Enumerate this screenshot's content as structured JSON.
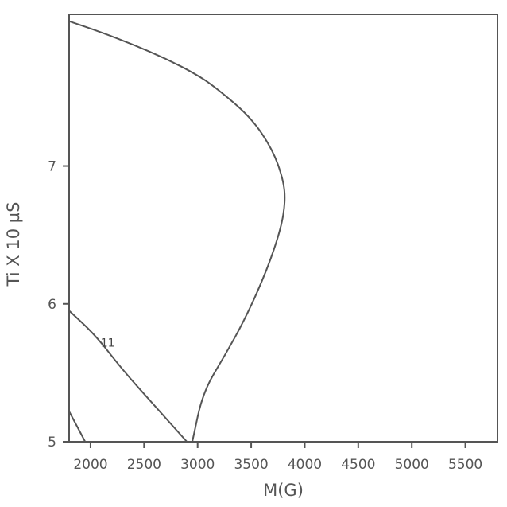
{
  "chart_data": {
    "type": "line",
    "subtype": "contour",
    "title": "",
    "xlabel": "M(G)",
    "ylabel": "Ti X 10 µS",
    "xlim": [
      1800,
      5800
    ],
    "ylim": [
      5,
      8.1
    ],
    "x_ticks": [
      2000,
      2500,
      3000,
      3500,
      4000,
      4500,
      5000,
      5500
    ],
    "y_ticks": [
      5,
      6,
      7
    ],
    "grid": false,
    "legend": "none",
    "line_color": "#555555",
    "series": [
      {
        "label": "",
        "points": [
          [
            1800,
            5.22
          ],
          [
            1950,
            5.0
          ]
        ]
      },
      {
        "label": "11",
        "points": [
          [
            1800,
            5.95
          ],
          [
            2050,
            5.77
          ],
          [
            2300,
            5.52
          ],
          [
            2600,
            5.26
          ],
          [
            2900,
            5.0
          ]
        ]
      },
      {
        "label": "",
        "points": [
          [
            1800,
            8.0
          ],
          [
            2000,
            7.95
          ],
          [
            2300,
            7.85
          ],
          [
            2600,
            7.75
          ],
          [
            3000,
            7.55
          ],
          [
            3400,
            7.35
          ],
          [
            3700,
            7.05
          ],
          [
            3800,
            6.9
          ],
          [
            3750,
            6.6
          ],
          [
            3500,
            6.1
          ],
          [
            3300,
            5.7
          ],
          [
            3100,
            5.45
          ],
          [
            2900,
            5.0
          ]
        ]
      }
    ],
    "contour_lines": [
      {
        "label": "",
        "points": [
          [
            1800,
            5.22
          ],
          [
            1950,
            5.0
          ]
        ]
      },
      {
        "label": "11",
        "points": [
          [
            1800,
            5.95
          ],
          [
            2050,
            5.77
          ],
          [
            2300,
            5.52
          ],
          [
            2600,
            5.26
          ],
          [
            2900,
            5.0
          ]
        ]
      },
      {
        "label": "",
        "points": [
          [
            1800,
            8.05
          ],
          [
            2100,
            7.97
          ],
          [
            2400,
            7.88
          ],
          [
            2700,
            7.78
          ],
          [
            3000,
            7.66
          ],
          [
            3200,
            7.55
          ],
          [
            3500,
            7.35
          ],
          [
            3700,
            7.12
          ],
          [
            3800,
            6.9
          ],
          [
            3820,
            6.75
          ],
          [
            3780,
            6.55
          ],
          [
            3650,
            6.25
          ],
          [
            3450,
            5.9
          ],
          [
            3250,
            5.62
          ],
          [
            3050,
            5.36
          ],
          [
            2950,
            5.0
          ]
        ]
      }
    ]
  }
}
